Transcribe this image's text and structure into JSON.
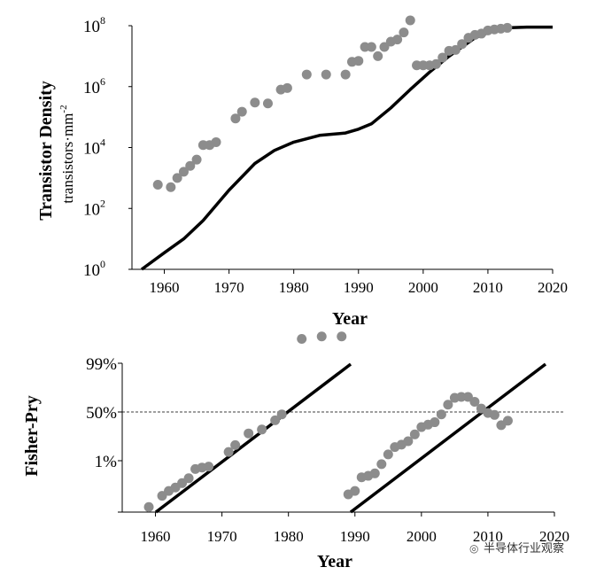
{
  "chart_data": [
    {
      "type": "scatter",
      "ylabel": "Transistor Density",
      "ylabel_unit": "transistors·mm",
      "ylabel_unit_exp": "-2",
      "xlabel": "Year",
      "xlim": [
        1955,
        2020
      ],
      "ylim_log10": [
        0,
        8
      ],
      "y_scale": "log",
      "x_ticks": [
        "1960",
        "1970",
        "1980",
        "1990",
        "2000",
        "2010",
        "2020"
      ],
      "y_ticks": [
        {
          "base": "10",
          "exp": "0",
          "log10": 0
        },
        {
          "base": "10",
          "exp": "2",
          "log10": 2
        },
        {
          "base": "10",
          "exp": "4",
          "log10": 4
        },
        {
          "base": "10",
          "exp": "6",
          "log10": 6
        },
        {
          "base": "10",
          "exp": "8",
          "log10": 8
        }
      ],
      "series": [
        {
          "type": "scatter",
          "color": "#8c8c8c",
          "points": [
            [
              1959,
              600
            ],
            [
              1961,
              500
            ],
            [
              1962,
              1000
            ],
            [
              1963,
              1600
            ],
            [
              1964,
              2500
            ],
            [
              1965,
              4000
            ],
            [
              1966,
              12000
            ],
            [
              1967,
              12000
            ],
            [
              1968,
              15000
            ],
            [
              1971,
              90000
            ],
            [
              1972,
              150000
            ],
            [
              1974,
              300000
            ],
            [
              1976,
              280000
            ],
            [
              1978,
              800000
            ],
            [
              1979,
              900000
            ],
            [
              1982,
              2500000
            ],
            [
              1985,
              2500000
            ],
            [
              1988,
              2500000
            ],
            [
              1989,
              6500000
            ],
            [
              1990,
              7000000
            ],
            [
              1991,
              20000000
            ],
            [
              1992,
              20000000
            ],
            [
              1993,
              10000000
            ],
            [
              1994,
              20000000
            ],
            [
              1995,
              30000000
            ],
            [
              1996,
              35000000
            ],
            [
              1997,
              60000000
            ],
            [
              1998,
              150000000
            ],
            [
              1999,
              5000000
            ],
            [
              2000,
              5000000
            ],
            [
              2001,
              5000000
            ],
            [
              2002,
              5500000
            ],
            [
              2003,
              9000000
            ],
            [
              2004,
              15000000
            ],
            [
              2005,
              16000000
            ],
            [
              2006,
              25000000
            ],
            [
              2007,
              40000000
            ],
            [
              2008,
              50000000
            ],
            [
              2009,
              55000000
            ],
            [
              2010,
              70000000
            ],
            [
              2011,
              75000000
            ],
            [
              2012,
              80000000
            ],
            [
              2013,
              85000000
            ]
          ]
        },
        {
          "type": "line",
          "color": "#000000",
          "points": [
            [
              1956.5,
              1
            ],
            [
              1960,
              3.5
            ],
            [
              1963,
              10
            ],
            [
              1966,
              40
            ],
            [
              1970,
              400
            ],
            [
              1974,
              3000
            ],
            [
              1977,
              8000
            ],
            [
              1980,
              15000
            ],
            [
              1984,
              25000
            ],
            [
              1988,
              30000
            ],
            [
              1990,
              40000
            ],
            [
              1992,
              60000
            ],
            [
              1995,
              200000
            ],
            [
              1998,
              800000
            ],
            [
              2001,
              3000000
            ],
            [
              2004,
              10000000
            ],
            [
              2008,
              40000000
            ],
            [
              2011,
              70000000
            ],
            [
              2013,
              85000000
            ],
            [
              2016,
              90000000
            ],
            [
              2020,
              90000000
            ]
          ]
        }
      ]
    },
    {
      "type": "scatter",
      "ylabel": "Fisher-Pry",
      "xlabel": "Year",
      "xlim": [
        1955,
        2020
      ],
      "x_ticks": [
        "1960",
        "1970",
        "1980",
        "1990",
        "2000",
        "2010",
        "2020"
      ],
      "y_ticks": [
        {
          "label": "99%",
          "pos": 0
        },
        {
          "label": "50%",
          "pos": 1
        },
        {
          "label": "1%",
          "pos": 2
        }
      ],
      "reference_line": {
        "label": "50%",
        "style": "dashed"
      },
      "series": [
        {
          "type": "scatter",
          "color": "#8c8c8c",
          "points": [
            [
              1959,
              2.95
            ],
            [
              1961,
              2.72
            ],
            [
              1962,
              2.62
            ],
            [
              1963,
              2.55
            ],
            [
              1964,
              2.46
            ],
            [
              1965,
              2.36
            ],
            [
              1966,
              2.17
            ],
            [
              1967,
              2.14
            ],
            [
              1968,
              2.12
            ],
            [
              1971,
              1.82
            ],
            [
              1972,
              1.68
            ],
            [
              1974,
              1.44
            ],
            [
              1976,
              1.36
            ],
            [
              1978,
              1.17
            ],
            [
              1979,
              1.05
            ],
            [
              1982,
              -0.5
            ],
            [
              1985,
              -0.55
            ],
            [
              1988,
              -0.55
            ],
            [
              1989,
              2.69
            ],
            [
              1990,
              2.62
            ],
            [
              1991,
              2.34
            ],
            [
              1992,
              2.31
            ],
            [
              1993,
              2.26
            ],
            [
              1994,
              2.07
            ],
            [
              1995,
              1.87
            ],
            [
              1996,
              1.72
            ],
            [
              1997,
              1.67
            ],
            [
              1998,
              1.6
            ],
            [
              1999,
              1.46
            ],
            [
              2000,
              1.31
            ],
            [
              2001,
              1.26
            ],
            [
              2002,
              1.21
            ],
            [
              2003,
              1.05
            ],
            [
              2004,
              0.85
            ],
            [
              2005,
              0.71
            ],
            [
              2006,
              0.69
            ],
            [
              2007,
              0.69
            ],
            [
              2008,
              0.79
            ],
            [
              2009,
              0.93
            ],
            [
              2010,
              1.02
            ],
            [
              2011,
              1.06
            ],
            [
              2012,
              1.27
            ],
            [
              2013,
              1.18
            ]
          ]
        }
      ]
    }
  ],
  "watermark": "半导体行业观察"
}
